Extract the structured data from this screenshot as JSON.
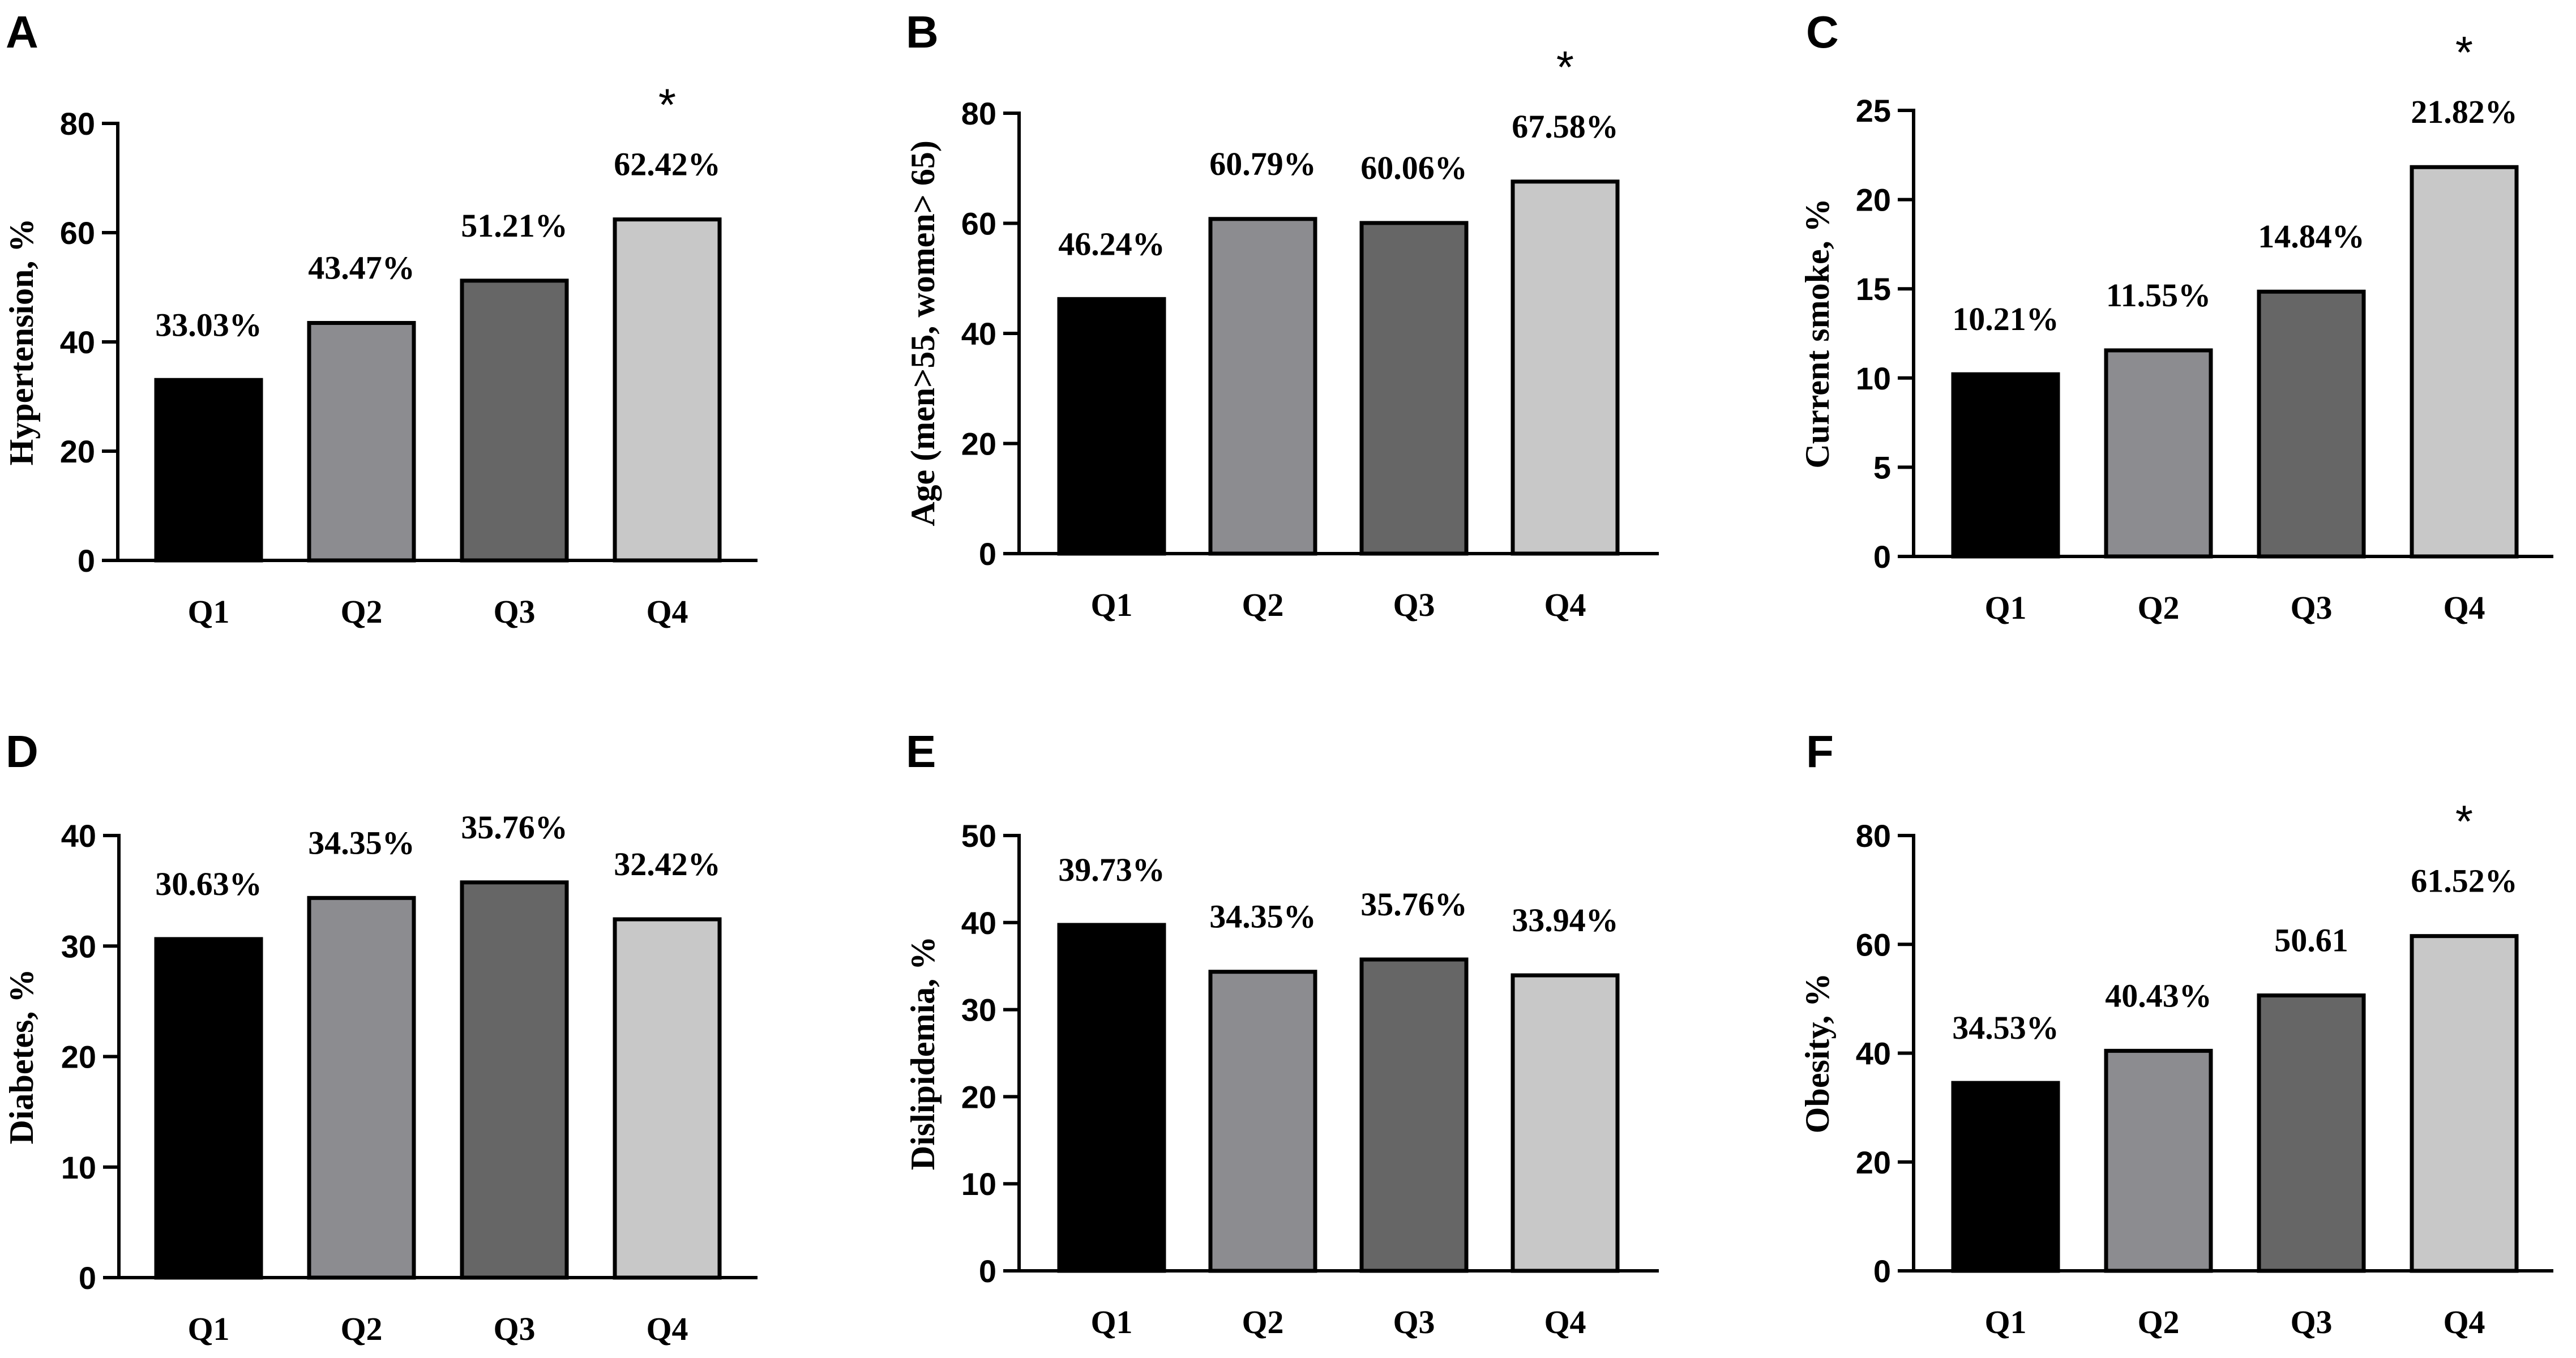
{
  "chart_data": [
    {
      "panel": "A",
      "type": "bar",
      "title": "",
      "xlabel": "",
      "ylabel": "Hypertension, %",
      "ylim": [
        0,
        80
      ],
      "yticks": [
        0,
        20,
        40,
        60,
        80
      ],
      "categories": [
        "Q1",
        "Q2",
        "Q3",
        "Q4"
      ],
      "values": [
        33.03,
        43.47,
        51.21,
        62.42
      ],
      "data_labels": [
        "33.03%",
        "43.47%",
        "51.21%",
        "62.42%"
      ],
      "significance": [
        "",
        "",
        "",
        "*"
      ],
      "colors": [
        "#000000",
        "#8c8c90",
        "#666666",
        "#c8c8c8"
      ]
    },
    {
      "panel": "B",
      "type": "bar",
      "title": "",
      "xlabel": "",
      "ylabel": "Age (men>55, women> 65)",
      "ylim": [
        0,
        80
      ],
      "yticks": [
        0,
        20,
        40,
        60,
        80
      ],
      "categories": [
        "Q1",
        "Q2",
        "Q3",
        "Q4"
      ],
      "values": [
        46.24,
        60.79,
        60.06,
        67.58
      ],
      "data_labels": [
        "46.24%",
        "60.79%",
        "60.06%",
        "67.58%"
      ],
      "significance": [
        "",
        "",
        "",
        "*"
      ],
      "colors": [
        "#000000",
        "#8c8c90",
        "#666666",
        "#c8c8c8"
      ]
    },
    {
      "panel": "C",
      "type": "bar",
      "title": "",
      "xlabel": "",
      "ylabel": "Current smoke, %",
      "ylim": [
        0,
        25
      ],
      "yticks": [
        0,
        5,
        10,
        15,
        20,
        25
      ],
      "categories": [
        "Q1",
        "Q2",
        "Q3",
        "Q4"
      ],
      "values": [
        10.21,
        11.55,
        14.84,
        21.82
      ],
      "data_labels": [
        "10.21%",
        "11.55%",
        "14.84%",
        "21.82%"
      ],
      "significance": [
        "",
        "",
        "",
        "*"
      ],
      "colors": [
        "#000000",
        "#8c8c90",
        "#666666",
        "#c8c8c8"
      ]
    },
    {
      "panel": "D",
      "type": "bar",
      "title": "",
      "xlabel": "",
      "ylabel": "Diabetes, %",
      "ylim": [
        0,
        40
      ],
      "yticks": [
        0,
        10,
        20,
        30,
        40
      ],
      "categories": [
        "Q1",
        "Q2",
        "Q3",
        "Q4"
      ],
      "values": [
        30.63,
        34.35,
        35.76,
        32.42
      ],
      "data_labels": [
        "30.63%",
        "34.35%",
        "35.76%",
        "32.42%"
      ],
      "significance": [
        "",
        "",
        "",
        ""
      ],
      "colors": [
        "#000000",
        "#8c8c90",
        "#666666",
        "#c8c8c8"
      ]
    },
    {
      "panel": "E",
      "type": "bar",
      "title": "",
      "xlabel": "",
      "ylabel": "Dislipidemia, %",
      "ylim": [
        0,
        50
      ],
      "yticks": [
        0,
        10,
        20,
        30,
        40,
        50
      ],
      "categories": [
        "Q1",
        "Q2",
        "Q3",
        "Q4"
      ],
      "values": [
        39.73,
        34.35,
        35.76,
        33.94
      ],
      "data_labels": [
        "39.73%",
        "34.35%",
        "35.76%",
        "33.94%"
      ],
      "significance": [
        "",
        "",
        "",
        ""
      ],
      "colors": [
        "#000000",
        "#8c8c90",
        "#666666",
        "#c8c8c8"
      ]
    },
    {
      "panel": "F",
      "type": "bar",
      "title": "",
      "xlabel": "",
      "ylabel": "Obesity, %",
      "ylim": [
        0,
        80
      ],
      "yticks": [
        0,
        20,
        40,
        60,
        80
      ],
      "categories": [
        "Q1",
        "Q2",
        "Q3",
        "Q4"
      ],
      "values": [
        34.53,
        40.43,
        50.61,
        61.52
      ],
      "data_labels": [
        "34.53%",
        "40.43%",
        "50.61",
        "61.52%"
      ],
      "significance": [
        "",
        "",
        "",
        "*"
      ],
      "colors": [
        "#000000",
        "#8c8c90",
        "#666666",
        "#c8c8c8"
      ]
    }
  ]
}
